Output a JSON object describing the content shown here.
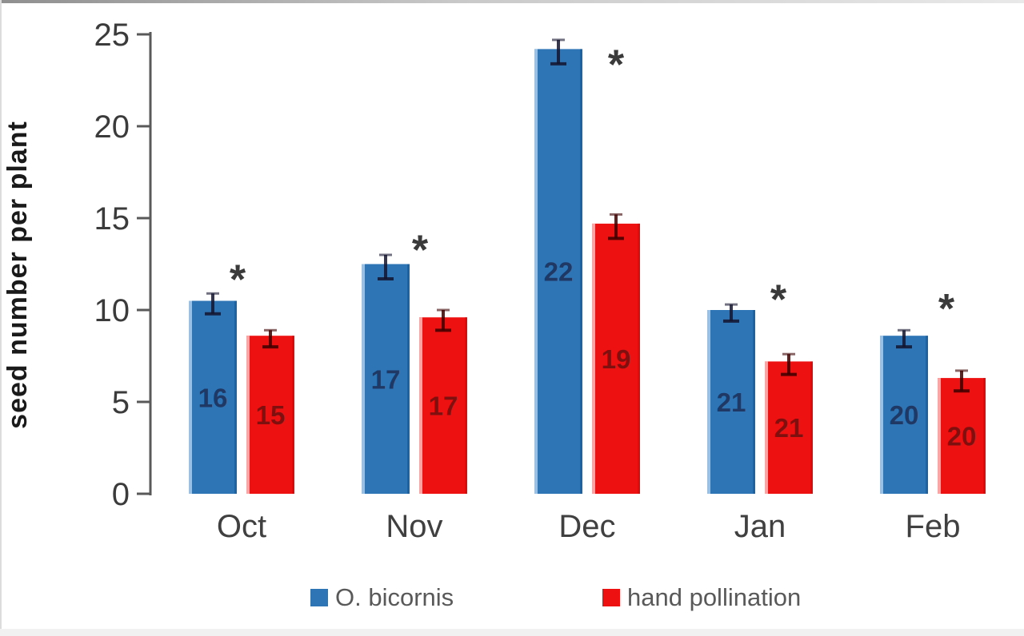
{
  "figure_title": "",
  "chart_data": {
    "type": "bar",
    "title": "",
    "xlabel": "",
    "ylabel": "seed number per plant",
    "ylim": [
      0,
      25
    ],
    "y_ticks": [
      0,
      5,
      10,
      15,
      20,
      25
    ],
    "grid": false,
    "legend_position": "bottom",
    "axis_color": "#595959",
    "tick_text_color": "#3b3b3b",
    "categories": [
      "Oct",
      "Nov",
      "Dec",
      "Jan",
      "Feb"
    ],
    "series": [
      {
        "name": "O. bicornis",
        "color": "#2e75b6",
        "edge_light": "#b5d5ef",
        "edge_dark": "#1d5a94",
        "label_color": "#1f3864",
        "error_color": "#14142e",
        "values": [
          10.5,
          12.5,
          24.2,
          10.0,
          8.6
        ],
        "errors": [
          0.4,
          0.5,
          0.5,
          0.3,
          0.3
        ],
        "n_labels": [
          "16",
          "17",
          "22",
          "21",
          "20"
        ]
      },
      {
        "name": "hand pollination",
        "color": "#ee1111",
        "edge_light": "#ffc9c9",
        "edge_dark": "#c40f0f",
        "label_color": "#7f1010",
        "error_color": "#3c0000",
        "values": [
          8.6,
          9.6,
          14.7,
          7.2,
          6.3
        ],
        "errors": [
          0.3,
          0.4,
          0.5,
          0.4,
          0.4
        ],
        "n_labels": [
          "15",
          "17",
          "19",
          "21",
          "20"
        ]
      }
    ],
    "significance_markers": [
      {
        "category": "Oct",
        "symbol": "*",
        "y": 12.2,
        "dx": -5
      },
      {
        "category": "Nov",
        "symbol": "*",
        "y": 13.8,
        "dx": 7
      },
      {
        "category": "Dec",
        "symbol": "*",
        "y": 23.9,
        "dx": 36
      },
      {
        "category": "Jan",
        "symbol": "*",
        "y": 11.1,
        "dx": 23
      },
      {
        "category": "Feb",
        "symbol": "*",
        "y": 10.6,
        "dx": 17
      }
    ],
    "sig_color": "#3a3a3a"
  },
  "legend": {
    "items": [
      {
        "label": "O. bicornis",
        "color": "#2e75b6"
      },
      {
        "label": "hand pollination",
        "color": "#ee1111"
      }
    ]
  }
}
